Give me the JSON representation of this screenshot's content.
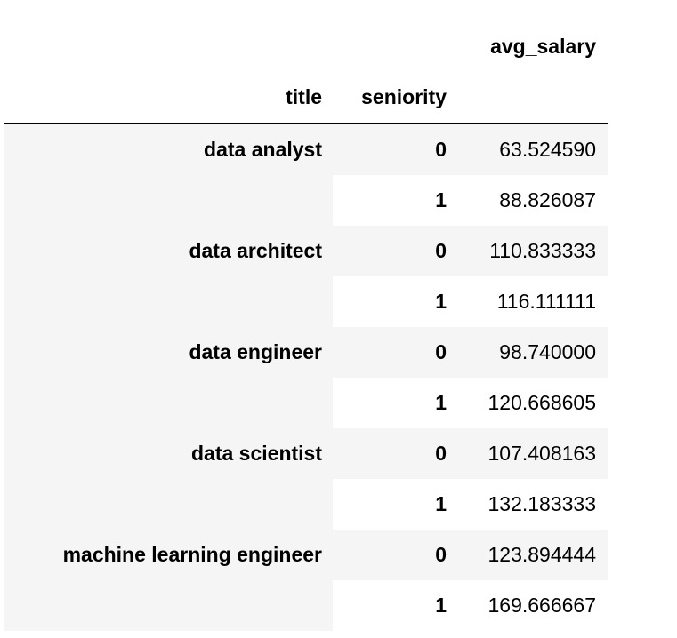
{
  "header": {
    "value_column": "avg_salary",
    "index_names": [
      "title",
      "seniority"
    ]
  },
  "rows": [
    {
      "title": "data analyst",
      "seniority": "0",
      "avg_salary": "63.524590"
    },
    {
      "title": "",
      "seniority": "1",
      "avg_salary": "88.826087"
    },
    {
      "title": "data architect",
      "seniority": "0",
      "avg_salary": "110.833333"
    },
    {
      "title": "",
      "seniority": "1",
      "avg_salary": "116.111111"
    },
    {
      "title": "data engineer",
      "seniority": "0",
      "avg_salary": "98.740000"
    },
    {
      "title": "",
      "seniority": "1",
      "avg_salary": "120.668605"
    },
    {
      "title": "data scientist",
      "seniority": "0",
      "avg_salary": "107.408163"
    },
    {
      "title": "",
      "seniority": "1",
      "avg_salary": "132.183333"
    },
    {
      "title": "machine learning engineer",
      "seniority": "0",
      "avg_salary": "123.894444"
    },
    {
      "title": "",
      "seniority": "1",
      "avg_salary": "169.666667"
    }
  ]
}
